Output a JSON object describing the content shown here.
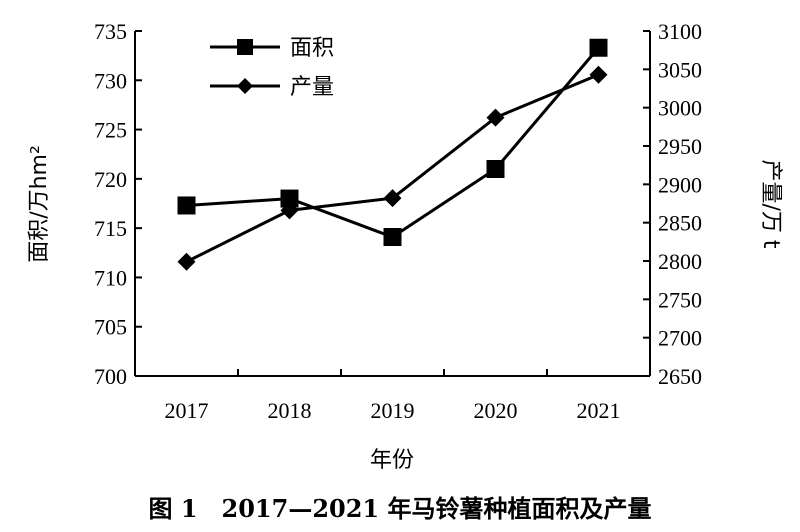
{
  "chart_data": {
    "type": "line",
    "categories": [
      "2017",
      "2018",
      "2019",
      "2020",
      "2021"
    ],
    "series": [
      {
        "name": "面积",
        "axis": "left",
        "marker": "square",
        "values": [
          717.3,
          718.0,
          714.1,
          721.0,
          733.3
        ]
      },
      {
        "name": "产量",
        "axis": "right",
        "marker": "diamond",
        "values": [
          2799,
          2866,
          2882,
          2987,
          3043
        ]
      }
    ],
    "xlabel": "年份",
    "ylabel_left": "面积/万hm²",
    "ylabel_right": "产量/万 t",
    "ylim_left": [
      700,
      735
    ],
    "yticks_left": [
      "700",
      "705",
      "710",
      "715",
      "720",
      "725",
      "730",
      "735"
    ],
    "ylim_right": [
      2650,
      3100
    ],
    "yticks_right": [
      "2650",
      "2700",
      "2750",
      "2800",
      "2850",
      "2900",
      "2950",
      "3000",
      "3050",
      "3100"
    ],
    "grid": false,
    "legend_position": "top-left"
  },
  "caption": "图 1　2017—2021 年马铃薯种植面积及产量"
}
